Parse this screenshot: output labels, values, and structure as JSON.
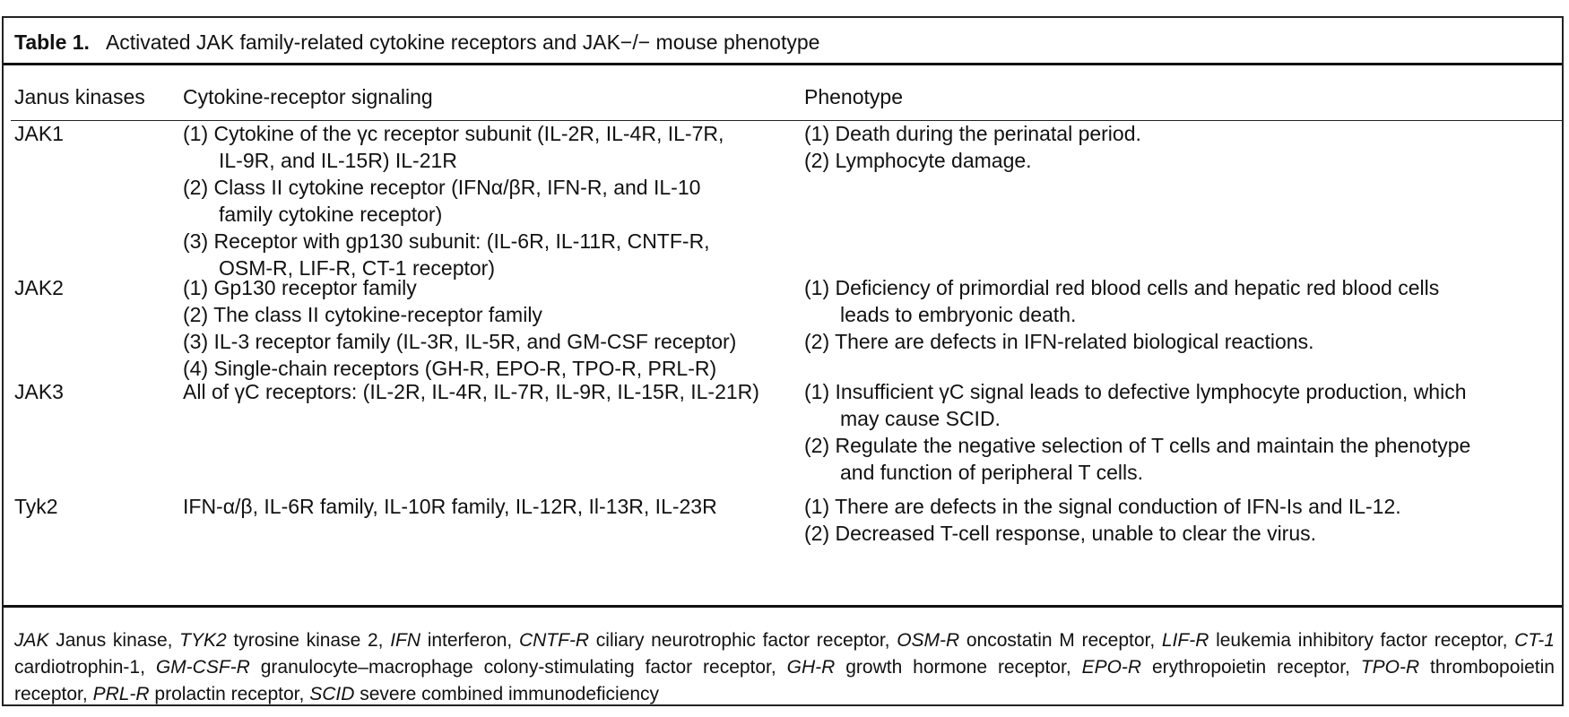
{
  "caption": {
    "label": "Table 1.",
    "title": "Activated JAK family-related cytokine receptors and JAK−/− mouse phenotype"
  },
  "headers": {
    "col1": "Janus kinases",
    "col2": "Cytokine-receptor signaling",
    "col3": "Phenotype"
  },
  "rows": [
    {
      "kinase": "JAK1",
      "signaling": [
        [
          "(1) Cytokine of the γc receptor subunit (IL-2R, IL-4R, IL-7R,",
          "IL-9R, and IL-15R) IL-21R"
        ],
        [
          "(2) Class II cytokine receptor (IFNα/βR, IFN-R, and IL-10",
          "family cytokine receptor)"
        ],
        [
          "(3) Receptor with gp130 subunit: (IL-6R, IL-11R, CNTF-R,",
          "OSM-R, LIF-R, CT-1 receptor)"
        ]
      ],
      "phenotype": [
        [
          "(1) Death during the perinatal period."
        ],
        [
          "(2) Lymphocyte damage."
        ]
      ]
    },
    {
      "kinase": "JAK2",
      "signaling": [
        [
          "(1) Gp130 receptor family"
        ],
        [
          "(2) The class II cytokine-receptor family"
        ],
        [
          "(3) IL-3 receptor family (IL-3R, IL-5R, and GM-CSF receptor)"
        ],
        [
          "(4) Single-chain receptors (GH-R, EPO-R, TPO-R, PRL-R)"
        ]
      ],
      "phenotype": [
        [
          "(1) Deficiency of primordial red blood cells and hepatic red blood cells",
          "leads to embryonic death."
        ],
        [
          "(2) There are defects in IFN-related biological reactions."
        ]
      ]
    },
    {
      "kinase": "JAK3",
      "signaling": [
        [
          "All of γC receptors: (IL-2R, IL-4R, IL-7R, IL-9R, IL-15R, IL-21R)"
        ]
      ],
      "phenotype": [
        [
          "(1) Insufficient γC signal leads to defective lymphocyte production, which",
          "may cause SCID."
        ],
        [
          "(2) Regulate the negative selection of T cells and maintain the phenotype",
          "and function of peripheral T cells."
        ]
      ]
    },
    {
      "kinase": "Tyk2",
      "signaling": [
        [
          "IFN-α/β, IL-6R family, IL-10R family, IL-12R, Il-13R, IL-23R"
        ]
      ],
      "phenotype": [
        [
          "(1) There are defects in the signal conduction of IFN-Is and IL-12."
        ],
        [
          "(2) Decreased T-cell response, unable to clear the virus."
        ]
      ]
    }
  ],
  "footnote": [
    {
      "abbr": "JAK",
      "def": "Janus kinase,"
    },
    {
      "abbr": "TYK2",
      "def": "tyrosine kinase 2,"
    },
    {
      "abbr": "IFN",
      "def": "interferon,"
    },
    {
      "abbr": "CNTF-R",
      "def": "ciliary neurotrophic factor receptor,"
    },
    {
      "abbr": "OSM-R",
      "def": "oncostatin M receptor,"
    },
    {
      "abbr": "LIF-R",
      "def": "leukemia inhibitory factor receptor,"
    },
    {
      "abbr": "CT-1",
      "def": "cardiotrophin-1,"
    },
    {
      "abbr": "GM-CSF-R",
      "def": "granulocyte–macrophage colony-stimulating factor receptor,"
    },
    {
      "abbr": "GH-R",
      "def": "growth hormone receptor,"
    },
    {
      "abbr": "EPO-R",
      "def": "erythropoietin receptor,"
    },
    {
      "abbr": "TPO-R",
      "def": "thrombopoietin receptor,"
    },
    {
      "abbr": "PRL-R",
      "def": "prolactin receptor,"
    },
    {
      "abbr": "SCID",
      "def": "severe combined immunodeficiency"
    }
  ]
}
